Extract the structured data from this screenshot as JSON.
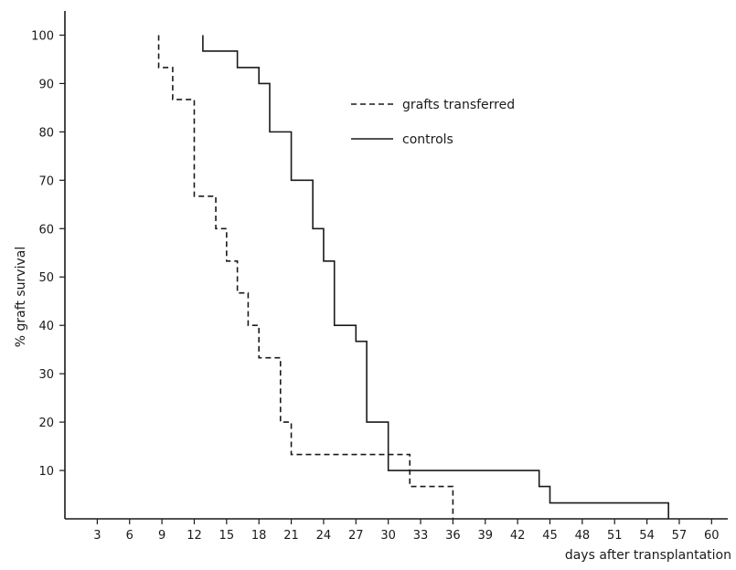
{
  "chart_data": {
    "type": "line",
    "step": true,
    "title": "",
    "xlabel": "days after transplantation",
    "ylabel": "% graft survival",
    "xlim": [
      0,
      61.5
    ],
    "ylim": [
      0,
      105
    ],
    "x_ticks": [
      3,
      6,
      9,
      12,
      15,
      18,
      21,
      24,
      27,
      30,
      33,
      36,
      39,
      42,
      45,
      48,
      51,
      54,
      57,
      60
    ],
    "y_ticks": [
      10,
      20,
      30,
      40,
      50,
      60,
      70,
      80,
      90,
      100
    ],
    "grid": false,
    "legend_position": "top-right",
    "series": [
      {
        "name": "grafts transferred",
        "line_style": "dashed",
        "x": [
          8.7,
          8.7,
          9.5,
          10,
          12,
          14,
          15,
          16,
          17,
          18,
          20,
          21,
          32,
          36
        ],
        "y": [
          100,
          93.3,
          93.3,
          86.7,
          66.7,
          60,
          53.3,
          46.7,
          40,
          33.3,
          20,
          13.3,
          6.7,
          0
        ]
      },
      {
        "name": "controls",
        "line_style": "solid",
        "x": [
          12.8,
          12.8,
          16,
          18,
          19,
          21,
          23,
          24,
          25,
          27,
          28,
          30,
          44,
          45,
          56
        ],
        "y": [
          100,
          96.7,
          93.3,
          90,
          80,
          70,
          60,
          53.3,
          40,
          36.7,
          20,
          10,
          6.7,
          3.3,
          0
        ]
      }
    ]
  }
}
